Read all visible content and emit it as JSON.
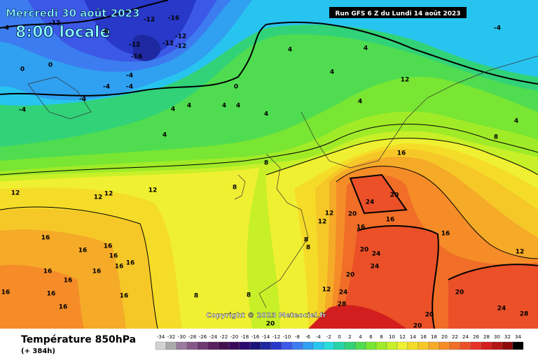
{
  "header": {
    "date": "Mercredi 30 août 2023",
    "time": "8:00 locale",
    "run": "Run GFS 6 Z du Lundi 14 août 2023"
  },
  "copyright": "Copyright © 2023 Meteociel.fr",
  "legend": {
    "title": "Température 850hPa",
    "subtitle": "(+ 384h)",
    "scale": [
      {
        "value": -34,
        "color": "#d2d2d2"
      },
      {
        "value": -32,
        "color": "#aaaaaa"
      },
      {
        "value": -30,
        "color": "#9a7a9e"
      },
      {
        "value": -28,
        "color": "#86588a"
      },
      {
        "value": -26,
        "color": "#6e3a72"
      },
      {
        "value": -24,
        "color": "#58205e"
      },
      {
        "value": -22,
        "color": "#46104e"
      },
      {
        "value": -20,
        "color": "#3a0a5a"
      },
      {
        "value": -18,
        "color": "#2a0a6e"
      },
      {
        "value": -16,
        "color": "#1a1478"
      },
      {
        "value": -14,
        "color": "#1e28a0"
      },
      {
        "value": -12,
        "color": "#2838c8"
      },
      {
        "value": -10,
        "color": "#3c58e6"
      },
      {
        "value": -8,
        "color": "#3c7cf0"
      },
      {
        "value": -6,
        "color": "#30a0f0"
      },
      {
        "value": -4,
        "color": "#28c4f0"
      },
      {
        "value": -2,
        "color": "#28dcdc"
      },
      {
        "value": 0,
        "color": "#28d4a8"
      },
      {
        "value": 2,
        "color": "#32d278"
      },
      {
        "value": 4,
        "color": "#50dc50"
      },
      {
        "value": 6,
        "color": "#78e632"
      },
      {
        "value": 8,
        "color": "#a0eb28"
      },
      {
        "value": 10,
        "color": "#c8f028"
      },
      {
        "value": 12,
        "color": "#f0f032"
      },
      {
        "value": 14,
        "color": "#f5dc28"
      },
      {
        "value": 16,
        "color": "#f5c828"
      },
      {
        "value": 18,
        "color": "#f5aa28"
      },
      {
        "value": 20,
        "color": "#f58c28"
      },
      {
        "value": 22,
        "color": "#f06e28"
      },
      {
        "value": 24,
        "color": "#eb5028"
      },
      {
        "value": 26,
        "color": "#e63228"
      },
      {
        "value": 28,
        "color": "#d21e1e"
      },
      {
        "value": 30,
        "color": "#b41414"
      },
      {
        "value": 32,
        "color": "#8c0a0a"
      },
      {
        "value": 34,
        "color": "#000000"
      }
    ]
  },
  "contour_labels": [
    -12,
    -16,
    -12,
    -8,
    -12,
    -12,
    -12,
    -12,
    -16,
    -4,
    -4,
    -4,
    -4,
    -4,
    -4,
    0,
    0,
    0,
    4,
    4,
    4,
    4,
    4,
    4,
    4,
    4,
    4,
    4,
    -4,
    4,
    12,
    8,
    16,
    24,
    20,
    20,
    16,
    16,
    16,
    12,
    20,
    24,
    24,
    20,
    24,
    28,
    20,
    20,
    20,
    24,
    28,
    12,
    12,
    12,
    12,
    8,
    8,
    12,
    12,
    8,
    8,
    8,
    12,
    20,
    16,
    16,
    16,
    16,
    16,
    16,
    16,
    16,
    16,
    16,
    16,
    16,
    16,
    8
  ]
}
